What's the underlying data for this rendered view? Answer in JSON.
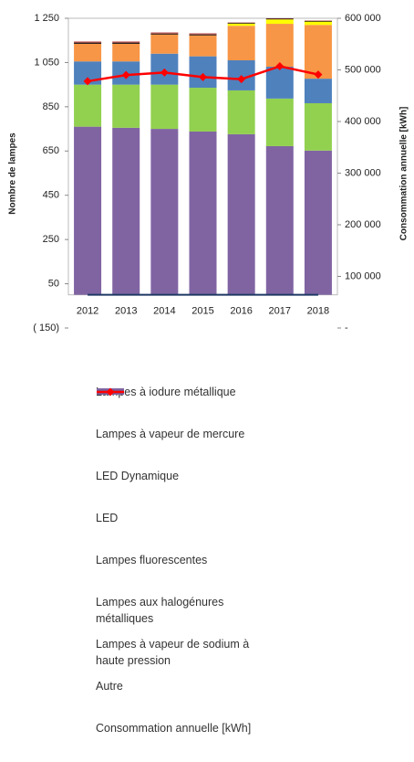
{
  "chart_data": {
    "type": "bar",
    "stacked": true,
    "ylabel": "Nombre de lampes",
    "y2label": "Consommation annuelle [kWh]",
    "categories": [
      "2012",
      "2013",
      "2014",
      "2015",
      "2016",
      "2017",
      "2018"
    ],
    "ylim": [
      -150,
      1250
    ],
    "yticks": [
      {
        "value": -150,
        "label": "( 150)"
      },
      50,
      250,
      450,
      650,
      850,
      {
        "value": 1050,
        "label": "1 050"
      },
      {
        "value": 1250,
        "label": "1 250"
      }
    ],
    "y2lim": [
      0,
      600000
    ],
    "y2ticks": [
      {
        "value": 0,
        "label": "-"
      },
      {
        "value": 100000,
        "label": "100 000"
      },
      {
        "value": 200000,
        "label": "200 000"
      },
      {
        "value": 300000,
        "label": "300 000"
      },
      {
        "value": 400000,
        "label": "400 000"
      },
      {
        "value": 500000,
        "label": "500 000"
      },
      {
        "value": 600000,
        "label": "600 000"
      }
    ],
    "series": [
      {
        "name": "Lampes à iodure métallique",
        "type": "bar",
        "color": "#c0504d",
        "values": [
          5,
          5,
          5,
          5,
          2,
          2,
          2
        ]
      },
      {
        "name": "Lampes à vapeur de mercure",
        "type": "bar",
        "color": "#000000",
        "values": [
          5,
          5,
          4,
          4,
          3,
          3,
          3
        ]
      },
      {
        "name": "LED Dynamique",
        "type": "bar",
        "color": "#ffff00",
        "values": [
          0,
          0,
          0,
          0,
          10,
          20,
          15
        ]
      },
      {
        "name": "LED",
        "type": "bar",
        "color": "#f79646",
        "values": [
          80,
          80,
          87,
          95,
          156,
          194,
          243
        ]
      },
      {
        "name": "Lampes fluorescentes",
        "type": "bar",
        "color": "#4f81bd",
        "values": [
          105,
          105,
          140,
          142,
          136,
          144,
          111
        ]
      },
      {
        "name": "Lampes aux halogénures métalliques",
        "type": "bar",
        "color": "#92d050",
        "values": [
          190,
          195,
          200,
          198,
          198,
          215,
          214
        ]
      },
      {
        "name": "Lampes à vapeur de sodium à haute pression",
        "type": "bar",
        "color": "#8064a2",
        "values": [
          760,
          755,
          750,
          738,
          726,
          672,
          652
        ]
      },
      {
        "name": "Autre",
        "type": "line",
        "color": "#1f3864",
        "values": [
          0,
          0,
          0,
          0,
          0,
          0,
          0
        ]
      },
      {
        "name": "Consommation annuelle [kWh]",
        "type": "line",
        "axis": "y2",
        "color": "#ff0000",
        "markers": true,
        "values": [
          478000,
          490000,
          495000,
          486000,
          482000,
          507000,
          491000
        ]
      }
    ]
  }
}
